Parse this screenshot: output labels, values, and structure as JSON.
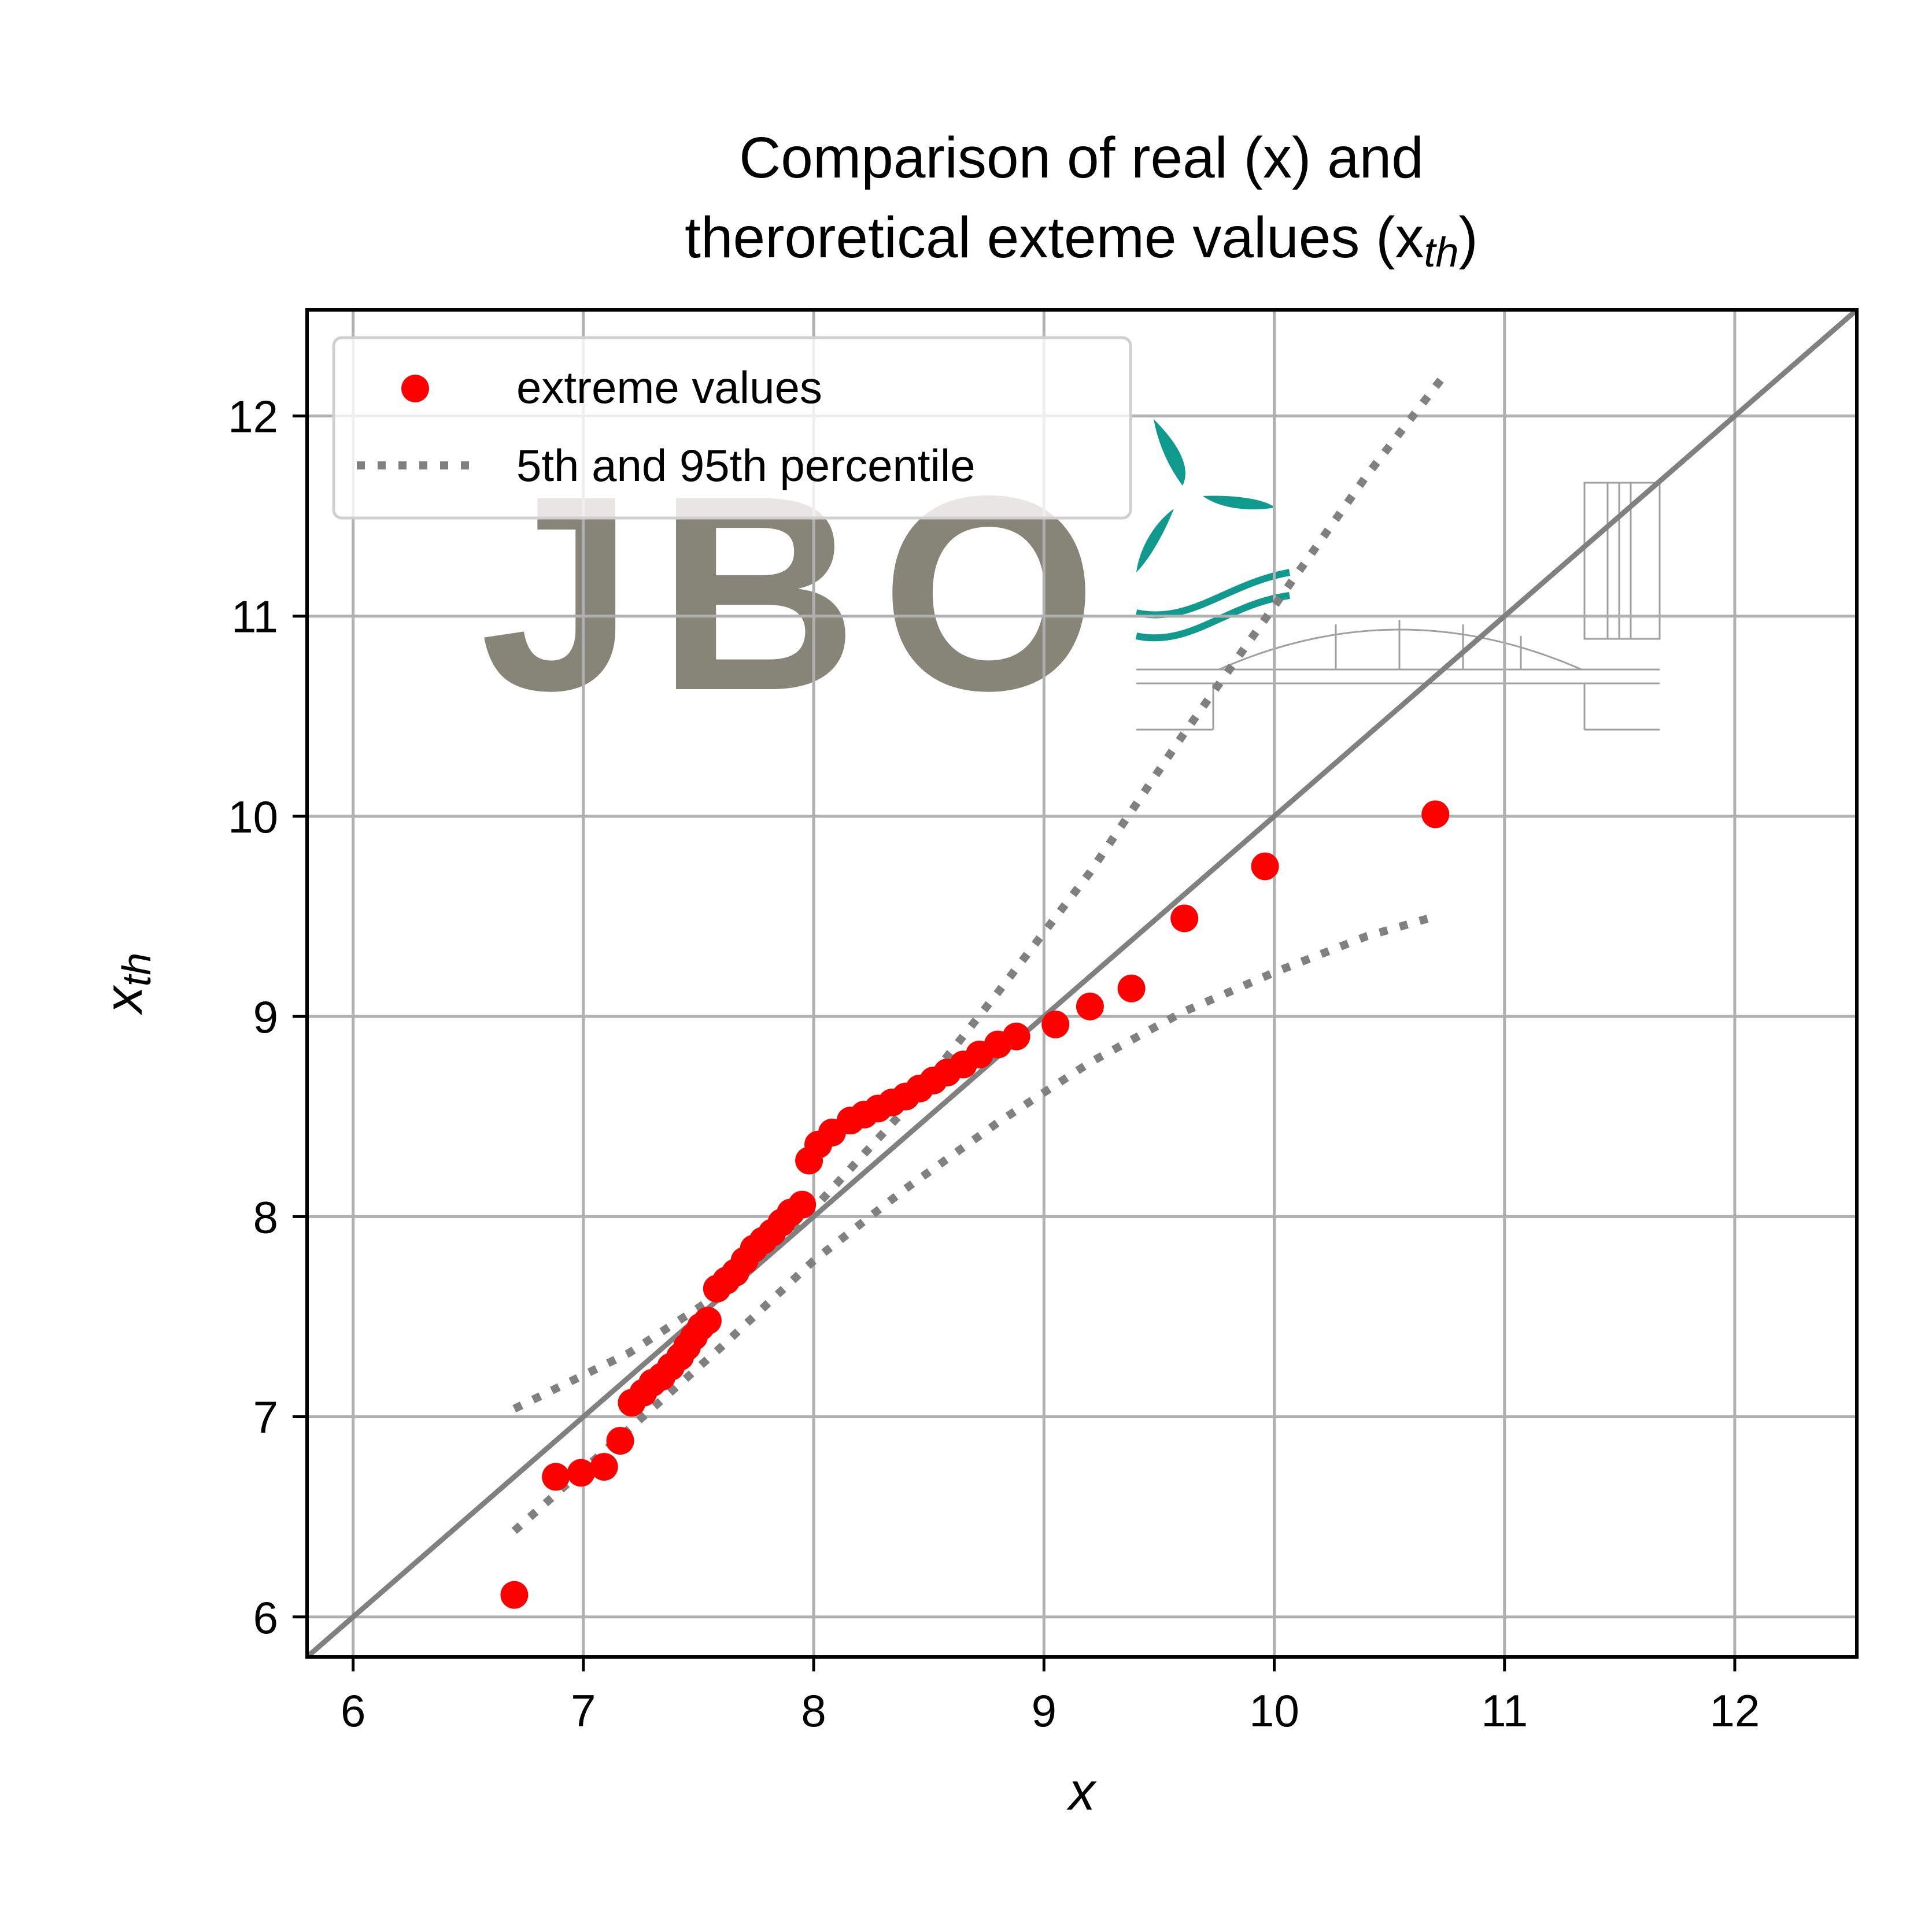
{
  "title_line1": "Comparison of real (x) and",
  "title_line2": "theroretical exteme values (x",
  "title_line2_sub": "th",
  "title_line2_end": ")",
  "watermark": "JBO",
  "colors": {
    "points": "#ff0000",
    "reference_line": "#808080",
    "percentile_line": "#808080",
    "grid": "#b0b0b0",
    "logo_text": "#878478",
    "logo_teal": "#109a8e"
  },
  "chart_data": {
    "type": "scatter",
    "title": "Comparison of real (x) and theroretical exteme values (x_th)",
    "xlabel": "x",
    "ylabel": "x_th",
    "ylabel_main": "x",
    "ylabel_sub": "th",
    "xlim": [
      5.8,
      12.53
    ],
    "ylim": [
      5.8,
      12.53
    ],
    "xticks": [
      6,
      7,
      8,
      9,
      10,
      11,
      12
    ],
    "yticks": [
      6,
      7,
      8,
      9,
      10,
      11,
      12
    ],
    "grid": true,
    "legend_position": "top-left",
    "legend": [
      "extreme values",
      "5th and 95th percentile"
    ],
    "series": [
      {
        "name": "extreme values",
        "kind": "scatter",
        "x": [
          6.7,
          6.88,
          6.99,
          7.09,
          7.16,
          7.21,
          7.26,
          7.3,
          7.34,
          7.38,
          7.42,
          7.45,
          7.48,
          7.51,
          7.54,
          7.58,
          7.62,
          7.66,
          7.7,
          7.74,
          7.78,
          7.82,
          7.86,
          7.9,
          7.95,
          7.98,
          8.02,
          8.08,
          8.16,
          8.22,
          8.28,
          8.34,
          8.4,
          8.46,
          8.52,
          8.58,
          8.65,
          8.72,
          8.8,
          8.88,
          9.05,
          9.2,
          9.38,
          9.61,
          9.96,
          10.7
        ],
        "y": [
          6.11,
          6.7,
          6.72,
          6.75,
          6.88,
          7.07,
          7.12,
          7.17,
          7.2,
          7.25,
          7.3,
          7.35,
          7.4,
          7.45,
          7.48,
          7.64,
          7.68,
          7.72,
          7.78,
          7.84,
          7.88,
          7.92,
          7.97,
          8.02,
          8.06,
          8.28,
          8.36,
          8.42,
          8.48,
          8.51,
          8.54,
          8.57,
          8.6,
          8.64,
          8.68,
          8.72,
          8.76,
          8.81,
          8.86,
          8.9,
          8.96,
          9.05,
          9.14,
          9.49,
          9.75,
          10.01
        ]
      },
      {
        "name": "5th and 95th percentile",
        "kind": "line",
        "style": "dotted",
        "x": [
          6.7,
          7.2,
          7.6,
          8.0,
          8.4,
          8.8,
          9.2,
          9.6,
          10.0,
          10.4,
          10.75
        ],
        "y": [
          7.04,
          7.32,
          7.62,
          8.04,
          8.54,
          9.12,
          9.72,
          10.4,
          11.05,
          11.7,
          12.22
        ]
      },
      {
        "name": "5th and 95th percentile",
        "kind": "line",
        "style": "dotted",
        "x": [
          6.7,
          7.2,
          7.6,
          8.0,
          8.4,
          8.8,
          9.2,
          9.6,
          10.0,
          10.4,
          10.7
        ],
        "y": [
          6.43,
          6.94,
          7.35,
          7.78,
          8.14,
          8.47,
          8.77,
          9.02,
          9.22,
          9.4,
          9.5
        ]
      },
      {
        "kind": "line",
        "style": "solid",
        "x": [
          5.8,
          12.53
        ],
        "y": [
          5.8,
          12.53
        ]
      }
    ]
  }
}
